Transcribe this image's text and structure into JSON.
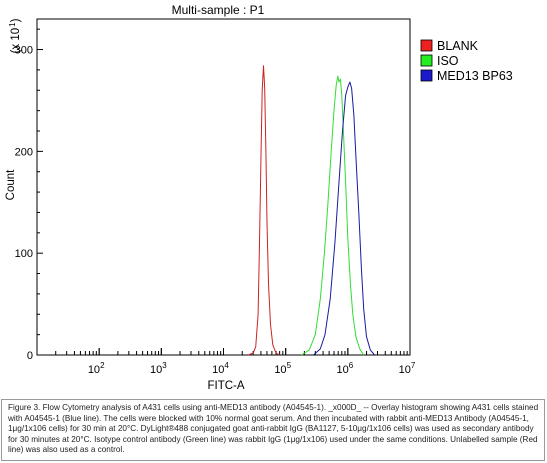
{
  "chart_data": {
    "type": "line",
    "title": "Multi-sample : P1",
    "xlabel": "FITC-A",
    "ylabel": "Count",
    "y_multiplier": "(x 10",
    "y_multiplier_exp": "1",
    "y_multiplier_close": ")",
    "x_scale": "log",
    "xlim": [
      10,
      10000000
    ],
    "ylim": [
      0,
      330
    ],
    "y_ticks": [
      0,
      100,
      200,
      300
    ],
    "x_ticks": [
      {
        "value": 100,
        "base": "10",
        "exp": "2"
      },
      {
        "value": 1000,
        "base": "10",
        "exp": "3"
      },
      {
        "value": 10000,
        "base": "10",
        "exp": "4"
      },
      {
        "value": 100000,
        "base": "10",
        "exp": "5"
      },
      {
        "value": 1000000,
        "base": "10",
        "exp": "6"
      },
      {
        "value": 10000000,
        "base": "10",
        "exp": "7"
      }
    ],
    "grid": false,
    "legend_position": "right",
    "series": [
      {
        "name": "BLANK",
        "color": "#cc2222",
        "swatch": "#ee2020",
        "points": [
          [
            25000,
            0
          ],
          [
            30000,
            2
          ],
          [
            33000,
            8
          ],
          [
            36000,
            40
          ],
          [
            38000,
            110
          ],
          [
            40000,
            190
          ],
          [
            42000,
            260
          ],
          [
            44000,
            284
          ],
          [
            46000,
            262
          ],
          [
            48000,
            200
          ],
          [
            50000,
            130
          ],
          [
            53000,
            70
          ],
          [
            57000,
            30
          ],
          [
            62000,
            10
          ],
          [
            70000,
            2
          ],
          [
            80000,
            0
          ]
        ]
      },
      {
        "name": "ISO",
        "color": "#33dd33",
        "swatch": "#22ee22",
        "points": [
          [
            180000,
            0
          ],
          [
            240000,
            5
          ],
          [
            300000,
            20
          ],
          [
            360000,
            55
          ],
          [
            420000,
            100
          ],
          [
            480000,
            150
          ],
          [
            540000,
            200
          ],
          [
            600000,
            240
          ],
          [
            650000,
            265
          ],
          [
            690000,
            274
          ],
          [
            720000,
            268
          ],
          [
            760000,
            271
          ],
          [
            800000,
            255
          ],
          [
            850000,
            220
          ],
          [
            920000,
            170
          ],
          [
            1000000,
            115
          ],
          [
            1100000,
            70
          ],
          [
            1200000,
            40
          ],
          [
            1350000,
            18
          ],
          [
            1550000,
            6
          ],
          [
            1800000,
            0
          ]
        ]
      },
      {
        "name": "MED13 BP63",
        "color": "#1a1aa0",
        "swatch": "#1a1acc",
        "points": [
          [
            280000,
            0
          ],
          [
            360000,
            6
          ],
          [
            430000,
            20
          ],
          [
            520000,
            55
          ],
          [
            620000,
            110
          ],
          [
            720000,
            170
          ],
          [
            820000,
            220
          ],
          [
            920000,
            255
          ],
          [
            1000000,
            263
          ],
          [
            1080000,
            268
          ],
          [
            1150000,
            262
          ],
          [
            1250000,
            235
          ],
          [
            1350000,
            195
          ],
          [
            1500000,
            140
          ],
          [
            1650000,
            85
          ],
          [
            1800000,
            45
          ],
          [
            2000000,
            18
          ],
          [
            2300000,
            5
          ],
          [
            2700000,
            0
          ]
        ]
      }
    ]
  },
  "caption": "Figure 3. Flow Cytometry analysis of A431 cells using anti-MED13 antibody (A04545-1). _x000D_ -- Overlay histogram showing A431 cells stained with A04545-1 (Blue line). The cells were blocked with 10% normal goat serum. And then incubated with rabbit anti-MED13 Antibody (A04545-1, 1μg/1x106 cells) for 30 min at 20°C. DyLight®488 conjugated goat anti-rabbit IgG (BA1127, 5-10μg/1x106 cells) was used as secondary antibody for 30 minutes at 20°C. Isotype control antibody (Green line) was rabbit IgG (1μg/1x106) used under the same conditions. Unlabelled sample (Red line) was also used as a control."
}
